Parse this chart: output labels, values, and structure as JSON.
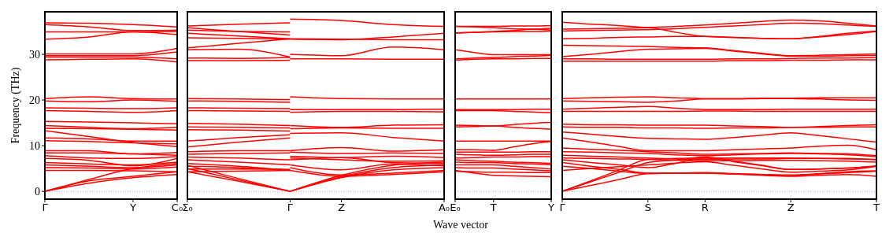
{
  "chart_data": [
    {
      "type": "line",
      "ylabel": "Frequency (THz)",
      "categories": [
        "Γ",
        null,
        "Y",
        "C₀"
      ],
      "ylim": [
        -1.7,
        39.3
      ],
      "yticks": [
        0,
        10,
        20,
        30
      ],
      "ref_lines": [
        {
          "axis": "y",
          "value": 0,
          "label": null,
          "color": "#7f7fff",
          "line_style": "dotted"
        }
      ],
      "series": [
        {
          "color": "#ff0000",
          "values": [
            36.9,
            36.8,
            36.5,
            36.0
          ]
        },
        {
          "color": "#ff0000",
          "values": [
            36.5,
            36.0,
            35.2,
            35.3
          ]
        },
        {
          "color": "#ff0000",
          "values": [
            34.9,
            34.9,
            34.9,
            35.0
          ]
        },
        {
          "color": "#ff0000",
          "values": [
            33.3,
            33.8,
            34.9,
            34.3
          ]
        },
        {
          "color": "#ff0000",
          "values": [
            30.1,
            30.1,
            30.1,
            31.3
          ]
        },
        {
          "color": "#ff0000",
          "values": [
            29.7,
            29.7,
            29.7,
            30.5
          ]
        },
        {
          "color": "#ff0000",
          "values": [
            29.4,
            29.4,
            29.4,
            29.0
          ]
        },
        {
          "color": "#ff0000",
          "values": [
            28.8,
            28.9,
            29.0,
            28.3
          ]
        },
        {
          "color": "#ff0000",
          "values": [
            20.3,
            20.7,
            20.3,
            20.2
          ]
        },
        {
          "color": "#ff0000",
          "values": [
            19.8,
            19.6,
            20.0,
            19.7
          ]
        },
        {
          "color": "#ff0000",
          "values": [
            18.3,
            18.2,
            18.1,
            18.3
          ]
        },
        {
          "color": "#ff0000",
          "values": [
            17.7,
            17.5,
            17.3,
            17.7
          ]
        },
        {
          "color": "#ff0000",
          "values": [
            15.3,
            15.2,
            15.0,
            14.8
          ]
        },
        {
          "color": "#ff0000",
          "values": [
            14.4,
            14.0,
            13.7,
            14.0
          ]
        },
        {
          "color": "#ff0000",
          "values": [
            13.8,
            13.7,
            13.6,
            13.4
          ]
        },
        {
          "color": "#ff0000",
          "values": [
            13.3,
            12.0,
            10.7,
            9.8
          ]
        },
        {
          "color": "#ff0000",
          "values": [
            11.7,
            11.5,
            11.0,
            11.0
          ]
        },
        {
          "color": "#ff0000",
          "values": [
            11.1,
            10.9,
            10.6,
            10.4
          ]
        },
        {
          "color": "#ff0000",
          "values": [
            8.9,
            8.9,
            8.2,
            8.5
          ]
        },
        {
          "color": "#ff0000",
          "values": [
            8.4,
            8.4,
            8.2,
            7.9
          ]
        },
        {
          "color": "#ff0000",
          "values": [
            7.8,
            7.3,
            7.2,
            7.6
          ]
        },
        {
          "color": "#ff0000",
          "values": [
            7.2,
            6.8,
            5.6,
            7.2
          ]
        },
        {
          "color": "#ff0000",
          "values": [
            6.3,
            6.0,
            5.8,
            6.4
          ]
        },
        {
          "color": "#ff0000",
          "values": [
            5.8,
            5.5,
            5.2,
            5.8
          ]
        },
        {
          "color": "#ff0000",
          "values": [
            5.2,
            5.1,
            4.9,
            5.3
          ]
        },
        {
          "color": "#ff0000",
          "values": [
            4.6,
            4.6,
            4.5,
            4.3
          ]
        },
        {
          "color": "#ff0000",
          "values": [
            0,
            2.6,
            5.0,
            6.1
          ]
        },
        {
          "color": "#ff0000",
          "values": [
            0,
            2.3,
            3.3,
            4.3
          ]
        },
        {
          "color": "#ff0000",
          "values": [
            0,
            1.8,
            3.0,
            3.7
          ]
        }
      ]
    },
    {
      "type": "line",
      "xlabel": "Wave vector",
      "tick_labels": "x",
      "categories": [
        "Σ₀",
        null,
        "Γ",
        "Z",
        null,
        "A₀"
      ],
      "ylim": [
        -1.7,
        39.3
      ],
      "yticks": [
        0,
        10,
        20,
        30
      ],
      "ref_lines": [
        {
          "axis": "y",
          "value": 0,
          "label": null,
          "color": "#7f7fff",
          "line_style": "dotted"
        }
      ],
      "series": [
        {
          "color": "#ff0000",
          "values": [
            36.2,
            36.6,
            36.9,
            null,
            null,
            null
          ]
        },
        {
          "color": "#ff0000",
          "values": [
            35.8,
            35.0,
            34.2,
            null,
            null,
            null
          ]
        },
        {
          "color": "#ff0000",
          "values": [
            35.3,
            35.0,
            34.9,
            null,
            null,
            null
          ]
        },
        {
          "color": "#ff0000",
          "values": [
            34.6,
            34.0,
            33.4,
            null,
            null,
            null
          ]
        },
        {
          "color": "#ff0000",
          "values": [
            33.6,
            33.5,
            33.3,
            null,
            null,
            null
          ]
        },
        {
          "color": "#ff0000",
          "values": [
            31.4,
            32.4,
            33.4,
            null,
            null,
            null
          ]
        },
        {
          "color": "#ff0000",
          "values": [
            31.0,
            31.1,
            29.4,
            null,
            null,
            null
          ]
        },
        {
          "color": "#ff0000",
          "values": [
            29.2,
            29.1,
            29.3,
            null,
            null,
            null
          ]
        },
        {
          "color": "#ff0000",
          "values": [
            28.6,
            28.6,
            28.7,
            null,
            null,
            null
          ]
        },
        {
          "color": "#ff0000",
          "values": [
            20.3,
            20.2,
            20.1,
            null,
            null,
            null
          ]
        },
        {
          "color": "#ff0000",
          "values": [
            19.8,
            19.7,
            19.5,
            null,
            null,
            null
          ]
        },
        {
          "color": "#ff0000",
          "values": [
            18.3,
            18.2,
            18.1,
            null,
            null,
            null
          ]
        },
        {
          "color": "#ff0000",
          "values": [
            17.7,
            17.6,
            17.5,
            null,
            null,
            null
          ]
        },
        {
          "color": "#ff0000",
          "values": [
            14.9,
            14.7,
            14.4,
            null,
            null,
            null
          ]
        },
        {
          "color": "#ff0000",
          "values": [
            14.1,
            14.0,
            13.9,
            null,
            null,
            null
          ]
        },
        {
          "color": "#ff0000",
          "values": [
            13.5,
            13.4,
            13.2,
            null,
            null,
            null
          ]
        },
        {
          "color": "#ff0000",
          "values": [
            11.0,
            11.8,
            12.4,
            null,
            null,
            null
          ]
        },
        {
          "color": "#ff0000",
          "values": [
            9.7,
            10.8,
            11.7,
            null,
            null,
            null
          ]
        },
        {
          "color": "#ff0000",
          "values": [
            8.7,
            8.9,
            8.9,
            null,
            null,
            null
          ]
        },
        {
          "color": "#ff0000",
          "values": [
            8.1,
            8.3,
            8.4,
            null,
            null,
            null
          ]
        },
        {
          "color": "#ff0000",
          "values": [
            7.5,
            7.3,
            6.9,
            null,
            null,
            null
          ]
        },
        {
          "color": "#ff0000",
          "values": [
            6.9,
            6.4,
            5.8,
            null,
            null,
            null
          ]
        },
        {
          "color": "#ff0000",
          "values": [
            6.1,
            5.5,
            4.6,
            null,
            null,
            null
          ]
        },
        {
          "color": "#ff0000",
          "values": [
            5.5,
            5.2,
            4.6,
            null,
            null,
            null
          ]
        },
        {
          "color": "#ff0000",
          "values": [
            4.9,
            4.9,
            4.8,
            null,
            null,
            null
          ]
        },
        {
          "color": "#ff0000",
          "values": [
            4.3,
            4.4,
            4.6,
            null,
            null,
            null
          ]
        },
        {
          "color": "#ff0000",
          "values": [
            5.7,
            2.8,
            0,
            null,
            null,
            null
          ]
        },
        {
          "color": "#ff0000",
          "values": [
            5.0,
            2.5,
            0,
            null,
            null,
            null
          ]
        },
        {
          "color": "#ff0000",
          "values": [
            4.3,
            2.2,
            0,
            null,
            null,
            null
          ]
        },
        {
          "color": "#ff0000",
          "values": [
            null,
            null,
            37.7,
            37.4,
            36.5,
            36.1
          ]
        },
        {
          "color": "#ff0000",
          "values": [
            null,
            null,
            33.3,
            33.2,
            33.8,
            34.6
          ]
        },
        {
          "color": "#ff0000",
          "values": [
            null,
            null,
            33.4,
            33.3,
            33.2,
            33.2
          ]
        },
        {
          "color": "#ff0000",
          "values": [
            null,
            null,
            30.0,
            29.7,
            31.6,
            31.0
          ]
        },
        {
          "color": "#ff0000",
          "values": [
            null,
            null,
            29.0,
            29.0,
            28.9,
            28.9
          ]
        },
        {
          "color": "#ff0000",
          "values": [
            null,
            null,
            20.7,
            20.3,
            20.2,
            20.2
          ]
        },
        {
          "color": "#ff0000",
          "values": [
            null,
            null,
            17.9,
            17.9,
            17.9,
            18.0
          ]
        },
        {
          "color": "#ff0000",
          "values": [
            null,
            null,
            17.3,
            17.5,
            17.5,
            17.4
          ]
        },
        {
          "color": "#ff0000",
          "values": [
            null,
            null,
            14.4,
            14.0,
            14.5,
            14.6
          ]
        },
        {
          "color": "#ff0000",
          "values": [
            null,
            null,
            13.7,
            13.9,
            13.8,
            13.8
          ]
        },
        {
          "color": "#ff0000",
          "values": [
            null,
            null,
            12.7,
            12.8,
            11.8,
            11.0
          ]
        },
        {
          "color": "#ff0000",
          "values": [
            null,
            null,
            8.9,
            9.6,
            8.8,
            9.1
          ]
        },
        {
          "color": "#ff0000",
          "values": [
            null,
            null,
            8.6,
            8.3,
            8.4,
            8.3
          ]
        },
        {
          "color": "#ff0000",
          "values": [
            null,
            null,
            7.7,
            7.4,
            7.7,
            7.4
          ]
        },
        {
          "color": "#ff0000",
          "values": [
            null,
            null,
            7.3,
            6.9,
            6.6,
            6.7
          ]
        },
        {
          "color": "#ff0000",
          "values": [
            null,
            null,
            6.9,
            7.4,
            6.3,
            6.1
          ]
        },
        {
          "color": "#ff0000",
          "values": [
            null,
            null,
            5.8,
            4.7,
            6.0,
            5.6
          ]
        },
        {
          "color": "#ff0000",
          "values": [
            null,
            null,
            5.2,
            3.6,
            4.0,
            4.6
          ]
        },
        {
          "color": "#ff0000",
          "values": [
            null,
            null,
            4.6,
            3.3,
            3.7,
            4.3
          ]
        },
        {
          "color": "#ff0000",
          "values": [
            null,
            null,
            0,
            3.5,
            5.7,
            6.4
          ]
        },
        {
          "color": "#ff0000",
          "values": [
            null,
            null,
            0,
            3.2,
            5.2,
            5.8
          ]
        },
        {
          "color": "#ff0000",
          "values": [
            null,
            null,
            0,
            3.0,
            4.7,
            5.2
          ]
        }
      ]
    },
    {
      "type": "line",
      "tick_labels": "x",
      "categories": [
        "E₀",
        null,
        "T",
        null,
        null,
        "Y"
      ],
      "ylim": [
        -1.7,
        39.3
      ],
      "yticks": [
        0,
        10,
        20,
        30
      ],
      "ref_lines": [
        {
          "axis": "y",
          "value": 0,
          "label": null,
          "color": "#7f7fff",
          "line_style": "dotted"
        }
      ],
      "series": [
        {
          "color": "#ff0000",
          "values": [
            36.1,
            36.1,
            36.1,
            36.2,
            36.2,
            36.3
          ]
        },
        {
          "color": "#ff0000",
          "values": [
            36.1,
            36.0,
            35.8,
            35.6,
            35.5,
            35.3
          ]
        },
        {
          "color": "#ff0000",
          "values": [
            34.7,
            34.8,
            35.0,
            35.2,
            35.5,
            35.7
          ]
        },
        {
          "color": "#ff0000",
          "values": [
            34.6,
            34.8,
            34.9,
            35.0,
            35.0,
            35.1
          ]
        },
        {
          "color": "#ff0000",
          "values": [
            31.0,
            30.4,
            29.9,
            29.9,
            29.9,
            29.9
          ]
        },
        {
          "color": "#ff0000",
          "values": [
            29.0,
            29.2,
            29.3,
            29.5,
            29.6,
            29.8
          ]
        },
        {
          "color": "#ff0000",
          "values": [
            28.7,
            28.9,
            29.0,
            29.0,
            29.1,
            29.1
          ]
        },
        {
          "color": "#ff0000",
          "values": [
            20.2,
            20.2,
            20.2,
            20.2,
            20.2,
            20.2
          ]
        },
        {
          "color": "#ff0000",
          "values": [
            17.9,
            17.9,
            17.9,
            17.9,
            18.0,
            18.0
          ]
        },
        {
          "color": "#ff0000",
          "values": [
            17.7,
            17.7,
            17.7,
            17.5,
            17.4,
            17.2
          ]
        },
        {
          "color": "#ff0000",
          "values": [
            14.5,
            14.4,
            14.3,
            14.6,
            14.9,
            15.1
          ]
        },
        {
          "color": "#ff0000",
          "values": [
            14.1,
            14.2,
            14.3,
            14.0,
            13.8,
            13.6
          ]
        },
        {
          "color": "#ff0000",
          "values": [
            11.0,
            11.0,
            11.0,
            11.0,
            11.0,
            11.0
          ]
        },
        {
          "color": "#ff0000",
          "values": [
            9.1,
            9.1,
            9.0,
            9.7,
            10.4,
            10.9
          ]
        },
        {
          "color": "#ff0000",
          "values": [
            8.6,
            8.6,
            8.6,
            8.6,
            8.7,
            8.7
          ]
        },
        {
          "color": "#ff0000",
          "values": [
            8.1,
            8.0,
            7.9,
            8.0,
            8.1,
            8.1
          ]
        },
        {
          "color": "#ff0000",
          "values": [
            7.3,
            7.4,
            7.5,
            7.5,
            7.6,
            7.6
          ]
        },
        {
          "color": "#ff0000",
          "values": [
            6.9,
            6.7,
            6.6,
            6.4,
            6.3,
            6.1
          ]
        },
        {
          "color": "#ff0000",
          "values": [
            6.4,
            6.3,
            6.3,
            6.1,
            6.0,
            5.8
          ]
        },
        {
          "color": "#ff0000",
          "values": [
            5.8,
            5.8,
            5.8,
            5.5,
            5.2,
            4.9
          ]
        },
        {
          "color": "#ff0000",
          "values": [
            5.2,
            5.1,
            5.1,
            4.9,
            4.7,
            4.5
          ]
        },
        {
          "color": "#ff0000",
          "values": [
            4.6,
            4.0,
            3.5,
            3.4,
            3.3,
            3.2
          ]
        },
        {
          "color": "#ff0000",
          "values": [
            4.4,
            4.3,
            4.2,
            4.2,
            4.1,
            4.1
          ]
        }
      ]
    },
    {
      "type": "line",
      "tick_labels": "x",
      "categories": [
        "Γ",
        null,
        null,
        "S",
        null,
        "R",
        null,
        null,
        "Z",
        null,
        null,
        "T"
      ],
      "ylim": [
        -1.7,
        39.3
      ],
      "yticks": [
        0,
        10,
        20,
        30
      ],
      "ref_lines": [
        {
          "axis": "y",
          "value": 0,
          "label": null,
          "color": "#7f7fff",
          "line_style": "dotted"
        }
      ],
      "series": [
        {
          "color": "#ff0000",
          "values": [
            37.0,
            36.6,
            36.3,
            35.9,
            36.1,
            36.4,
            36.8,
            37.2,
            37.5,
            37.3,
            36.8,
            36.2
          ]
        },
        {
          "color": "#ff0000",
          "values": [
            35.5,
            35.6,
            35.7,
            35.8,
            34.8,
            33.9,
            33.7,
            33.5,
            33.4,
            33.9,
            34.6,
            35.1
          ]
        },
        {
          "color": "#ff0000",
          "values": [
            35.1,
            35.2,
            35.3,
            35.4,
            35.6,
            35.9,
            36.2,
            36.5,
            36.8,
            36.7,
            36.4,
            36.1
          ]
        },
        {
          "color": "#ff0000",
          "values": [
            33.4,
            33.5,
            33.7,
            33.8,
            33.9,
            33.9,
            33.7,
            33.5,
            33.4,
            33.8,
            34.3,
            35.0
          ]
        },
        {
          "color": "#ff0000",
          "values": [
            32.0,
            31.9,
            31.8,
            31.7,
            31.5,
            31.4,
            30.8,
            30.2,
            29.7,
            29.8,
            29.9,
            30.1
          ]
        },
        {
          "color": "#ff0000",
          "values": [
            29.5,
            30.0,
            30.6,
            31.1,
            31.2,
            31.3,
            30.7,
            30.1,
            29.6,
            29.6,
            29.7,
            29.8
          ]
        },
        {
          "color": "#ff0000",
          "values": [
            29.0,
            29.0,
            28.9,
            28.9,
            28.9,
            28.9,
            29.0,
            29.0,
            29.1,
            29.2,
            29.2,
            29.3
          ]
        },
        {
          "color": "#ff0000",
          "values": [
            28.5,
            28.5,
            28.5,
            28.5,
            28.5,
            28.5,
            28.6,
            28.6,
            28.7,
            28.7,
            28.8,
            28.8
          ]
        },
        {
          "color": "#ff0000",
          "values": [
            20.3,
            20.5,
            20.6,
            20.7,
            20.5,
            20.3,
            20.3,
            20.4,
            20.4,
            20.5,
            20.5,
            20.5
          ]
        },
        {
          "color": "#ff0000",
          "values": [
            19.8,
            19.7,
            19.6,
            19.5,
            19.8,
            20.2,
            20.2,
            20.3,
            20.3,
            20.2,
            20.0,
            19.9
          ]
        },
        {
          "color": "#ff0000",
          "values": [
            18.0,
            18.2,
            18.4,
            18.6,
            18.2,
            17.9,
            17.9,
            17.9,
            18.0,
            18.0,
            18.0,
            18.0
          ]
        },
        {
          "color": "#ff0000",
          "values": [
            17.5,
            17.5,
            17.5,
            17.5,
            17.5,
            17.6,
            17.6,
            17.5,
            17.5,
            17.5,
            17.5,
            17.5
          ]
        },
        {
          "color": "#ff0000",
          "values": [
            14.7,
            14.6,
            14.6,
            14.5,
            14.5,
            14.5,
            14.3,
            14.2,
            14.0,
            14.2,
            14.4,
            14.6
          ]
        },
        {
          "color": "#ff0000",
          "values": [
            14.1,
            14.0,
            14.0,
            13.9,
            13.9,
            13.8,
            13.9,
            13.9,
            14.0,
            14.0,
            14.1,
            14.1
          ]
        },
        {
          "color": "#ff0000",
          "values": [
            13.0,
            12.5,
            12.0,
            11.6,
            11.5,
            11.4,
            11.8,
            12.3,
            12.8,
            12.2,
            11.5,
            10.8
          ]
        },
        {
          "color": "#ff0000",
          "values": [
            11.7,
            10.8,
            9.8,
            8.9,
            8.9,
            8.9,
            9.1,
            9.3,
            9.5,
            9.9,
            10.1,
            9.1
          ]
        },
        {
          "color": "#ff0000",
          "values": [
            9.5,
            9.2,
            9.0,
            8.7,
            8.4,
            8.1,
            8.2,
            8.3,
            8.4,
            8.3,
            8.2,
            7.8
          ]
        },
        {
          "color": "#ff0000",
          "values": [
            8.7,
            8.6,
            8.4,
            8.3,
            8.0,
            7.8,
            8.0,
            8.2,
            8.3,
            8.2,
            8.0,
            7.6
          ]
        },
        {
          "color": "#ff0000",
          "values": [
            7.9,
            7.7,
            7.5,
            7.3,
            7.1,
            7.0,
            7.1,
            7.1,
            7.2,
            7.2,
            7.1,
            7.0
          ]
        },
        {
          "color": "#ff0000",
          "values": [
            7.3,
            7.2,
            7.1,
            7.0,
            6.8,
            6.7,
            6.7,
            6.8,
            6.8,
            6.7,
            6.6,
            6.4
          ]
        },
        {
          "color": "#ff0000",
          "values": [
            6.9,
            6.3,
            5.8,
            5.2,
            6.2,
            7.3,
            6.5,
            5.6,
            4.8,
            4.9,
            5.1,
            5.5
          ]
        },
        {
          "color": "#ff0000",
          "values": [
            6.3,
            5.5,
            4.8,
            4.0,
            4.0,
            4.0,
            3.8,
            3.7,
            3.5,
            3.9,
            4.3,
            4.5
          ]
        },
        {
          "color": "#ff0000",
          "values": [
            5.5,
            5.0,
            4.4,
            3.9,
            4.0,
            4.0,
            3.8,
            3.5,
            3.3,
            3.5,
            3.7,
            3.3
          ]
        },
        {
          "color": "#ff0000",
          "values": [
            4.6,
            5.0,
            5.4,
            5.8,
            6.2,
            6.5,
            5.7,
            4.9,
            4.2,
            4.4,
            4.7,
            5.5
          ]
        },
        {
          "color": "#ff0000",
          "values": [
            0,
            2.3,
            4.7,
            7.0,
            7.2,
            7.3,
            7.3,
            7.3,
            7.3,
            7.2,
            7.2,
            6.9
          ]
        },
        {
          "color": "#ff0000",
          "values": [
            0,
            2.1,
            4.2,
            6.3,
            6.9,
            7.5,
            6.6,
            5.7,
            4.8,
            4.9,
            5.1,
            5.6
          ]
        },
        {
          "color": "#ff0000",
          "values": [
            0,
            1.3,
            2.6,
            3.9,
            4.0,
            4.1,
            3.9,
            3.7,
            3.6,
            3.8,
            4.1,
            4.4
          ]
        }
      ]
    }
  ]
}
